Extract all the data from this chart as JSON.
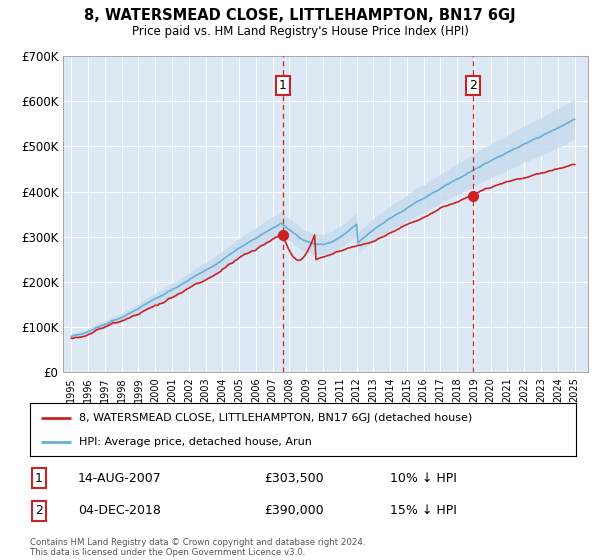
{
  "title": "8, WATERSMEAD CLOSE, LITTLEHAMPTON, BN17 6GJ",
  "subtitle": "Price paid vs. HM Land Registry's House Price Index (HPI)",
  "background_color": "#ffffff",
  "plot_bg_color": "#dce9f5",
  "grid_color": "#ffffff",
  "ylim": [
    0,
    700000
  ],
  "yticks": [
    0,
    100000,
    200000,
    300000,
    400000,
    500000,
    600000,
    700000
  ],
  "ytick_labels": [
    "£0",
    "£100K",
    "£200K",
    "£300K",
    "£400K",
    "£500K",
    "£600K",
    "£700K"
  ],
  "hpi_color": "#6baed6",
  "hpi_fill_color": "#c6dbef",
  "price_color": "#cc2222",
  "marker1_x": 2007.62,
  "marker1_y": 303500,
  "marker2_x": 2018.92,
  "marker2_y": 390000,
  "legend_label1": "8, WATERSMEAD CLOSE, LITTLEHAMPTON, BN17 6GJ (detached house)",
  "legend_label2": "HPI: Average price, detached house, Arun",
  "note1_label": "1",
  "note1_date": "14-AUG-2007",
  "note1_price": "£303,500",
  "note1_hpi": "10% ↓ HPI",
  "note2_label": "2",
  "note2_date": "04-DEC-2018",
  "note2_price": "£390,000",
  "note2_hpi": "15% ↓ HPI",
  "copyright": "Contains HM Land Registry data © Crown copyright and database right 2024.\nThis data is licensed under the Open Government Licence v3.0.",
  "xlim_left": 1994.5,
  "xlim_right": 2025.8
}
